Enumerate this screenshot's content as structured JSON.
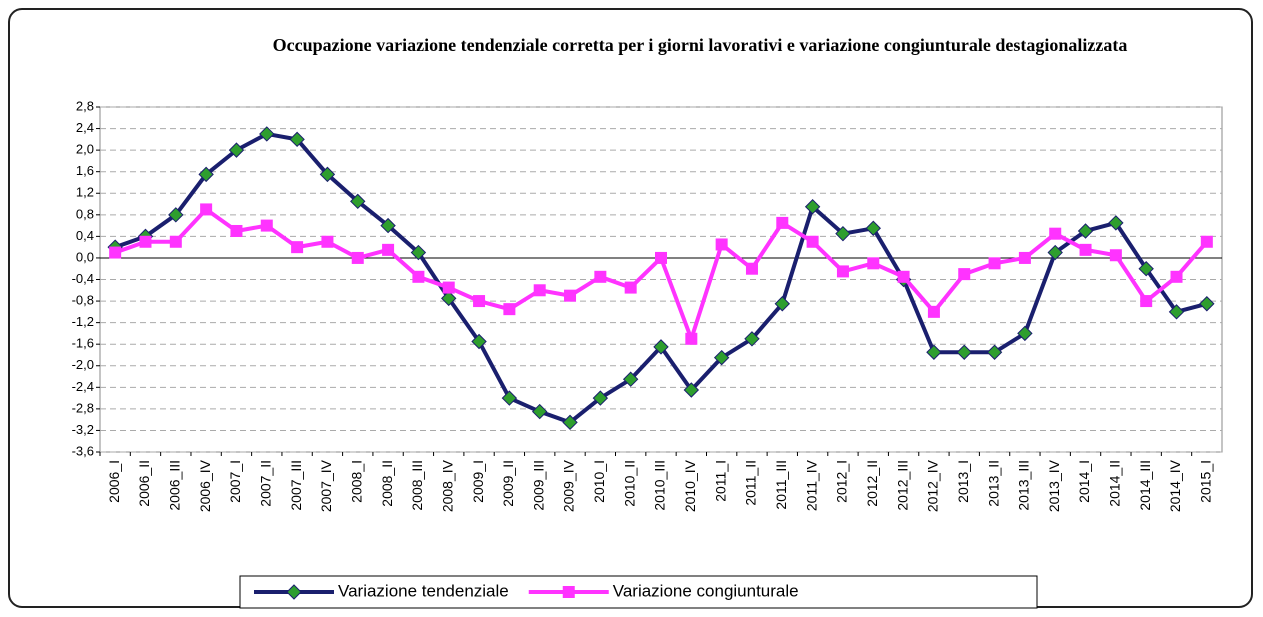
{
  "chart_data": {
    "type": "line",
    "title": "Occupazione variazione tendenziale corretta per i giorni lavorativi e variazione congiunturale destagionalizzata",
    "categories": [
      "2006_I",
      "2006_II",
      "2006_III",
      "2006_IV",
      "2007_I",
      "2007_II",
      "2007_III",
      "2007_IV",
      "2008_I",
      "2008_II",
      "2008_III",
      "2008_IV",
      "2009_I",
      "2009_II",
      "2009_III",
      "2009_IV",
      "2010_I",
      "2010_II",
      "2010_III",
      "2010_IV",
      "2011_I",
      "2011_II",
      "2011_III",
      "2011_IV",
      "2012_I",
      "2012_II",
      "2012_III",
      "2012_IV",
      "2013_I",
      "2013_II",
      "2013_III",
      "2013_IV",
      "2014_I",
      "2014_II",
      "2014_III",
      "2014_IV",
      "2015_I"
    ],
    "series": [
      {
        "name": "Variazione tendenziale",
        "color": "#1a1f6e",
        "marker": "diamond",
        "marker_color": "#2e9e2e",
        "values": [
          0.2,
          0.4,
          0.8,
          1.55,
          2.0,
          2.3,
          2.2,
          1.55,
          1.05,
          0.6,
          0.1,
          -0.75,
          -1.55,
          -2.6,
          -2.85,
          -3.05,
          -2.6,
          -2.25,
          -1.65,
          -2.45,
          -1.85,
          -1.5,
          -0.85,
          0.95,
          0.45,
          0.55,
          -0.4,
          -1.75,
          -1.75,
          -1.75,
          -1.4,
          0.1,
          0.5,
          0.65,
          -0.2,
          -1.0,
          -0.85
        ]
      },
      {
        "name": "Variazione congiunturale",
        "color": "#ff33ff",
        "marker": "square",
        "marker_color": "#ff33ff",
        "values": [
          0.1,
          0.3,
          0.3,
          0.9,
          0.5,
          0.6,
          0.2,
          0.3,
          0.0,
          0.15,
          -0.35,
          -0.55,
          -0.8,
          -0.95,
          -0.6,
          -0.7,
          -0.35,
          -0.55,
          0.0,
          -1.5,
          0.25,
          -0.2,
          0.65,
          0.3,
          -0.25,
          -0.1,
          -0.35,
          -1.0,
          -0.3,
          -0.1,
          0.0,
          0.45,
          0.15,
          0.05,
          -0.8,
          -0.35,
          0.3
        ]
      }
    ],
    "ylim": [
      -3.6,
      2.8
    ],
    "yticks": [
      {
        "value": -3.6,
        "label": "-3,6"
      },
      {
        "value": -3.2,
        "label": "-3,2"
      },
      {
        "value": -2.8,
        "label": "-2,8"
      },
      {
        "value": -2.4,
        "label": "-2,4"
      },
      {
        "value": -2.0,
        "label": "-2,0"
      },
      {
        "value": -1.6,
        "label": "-1,6"
      },
      {
        "value": -1.2,
        "label": "-1,2"
      },
      {
        "value": -0.8,
        "label": "-0,8"
      },
      {
        "value": -0.4,
        "label": "-0,4"
      },
      {
        "value": 0,
        "label": "0,0"
      },
      {
        "value": 0.4,
        "label": "0,4"
      },
      {
        "value": 0.8,
        "label": "0,8"
      },
      {
        "value": 1.2,
        "label": "1,2"
      },
      {
        "value": 1.6,
        "label": "1,6"
      },
      {
        "value": 2.0,
        "label": "2,0"
      },
      {
        "value": 2.4,
        "label": "2,4"
      },
      {
        "value": 2.8,
        "label": "2,8"
      }
    ],
    "grid": true
  }
}
